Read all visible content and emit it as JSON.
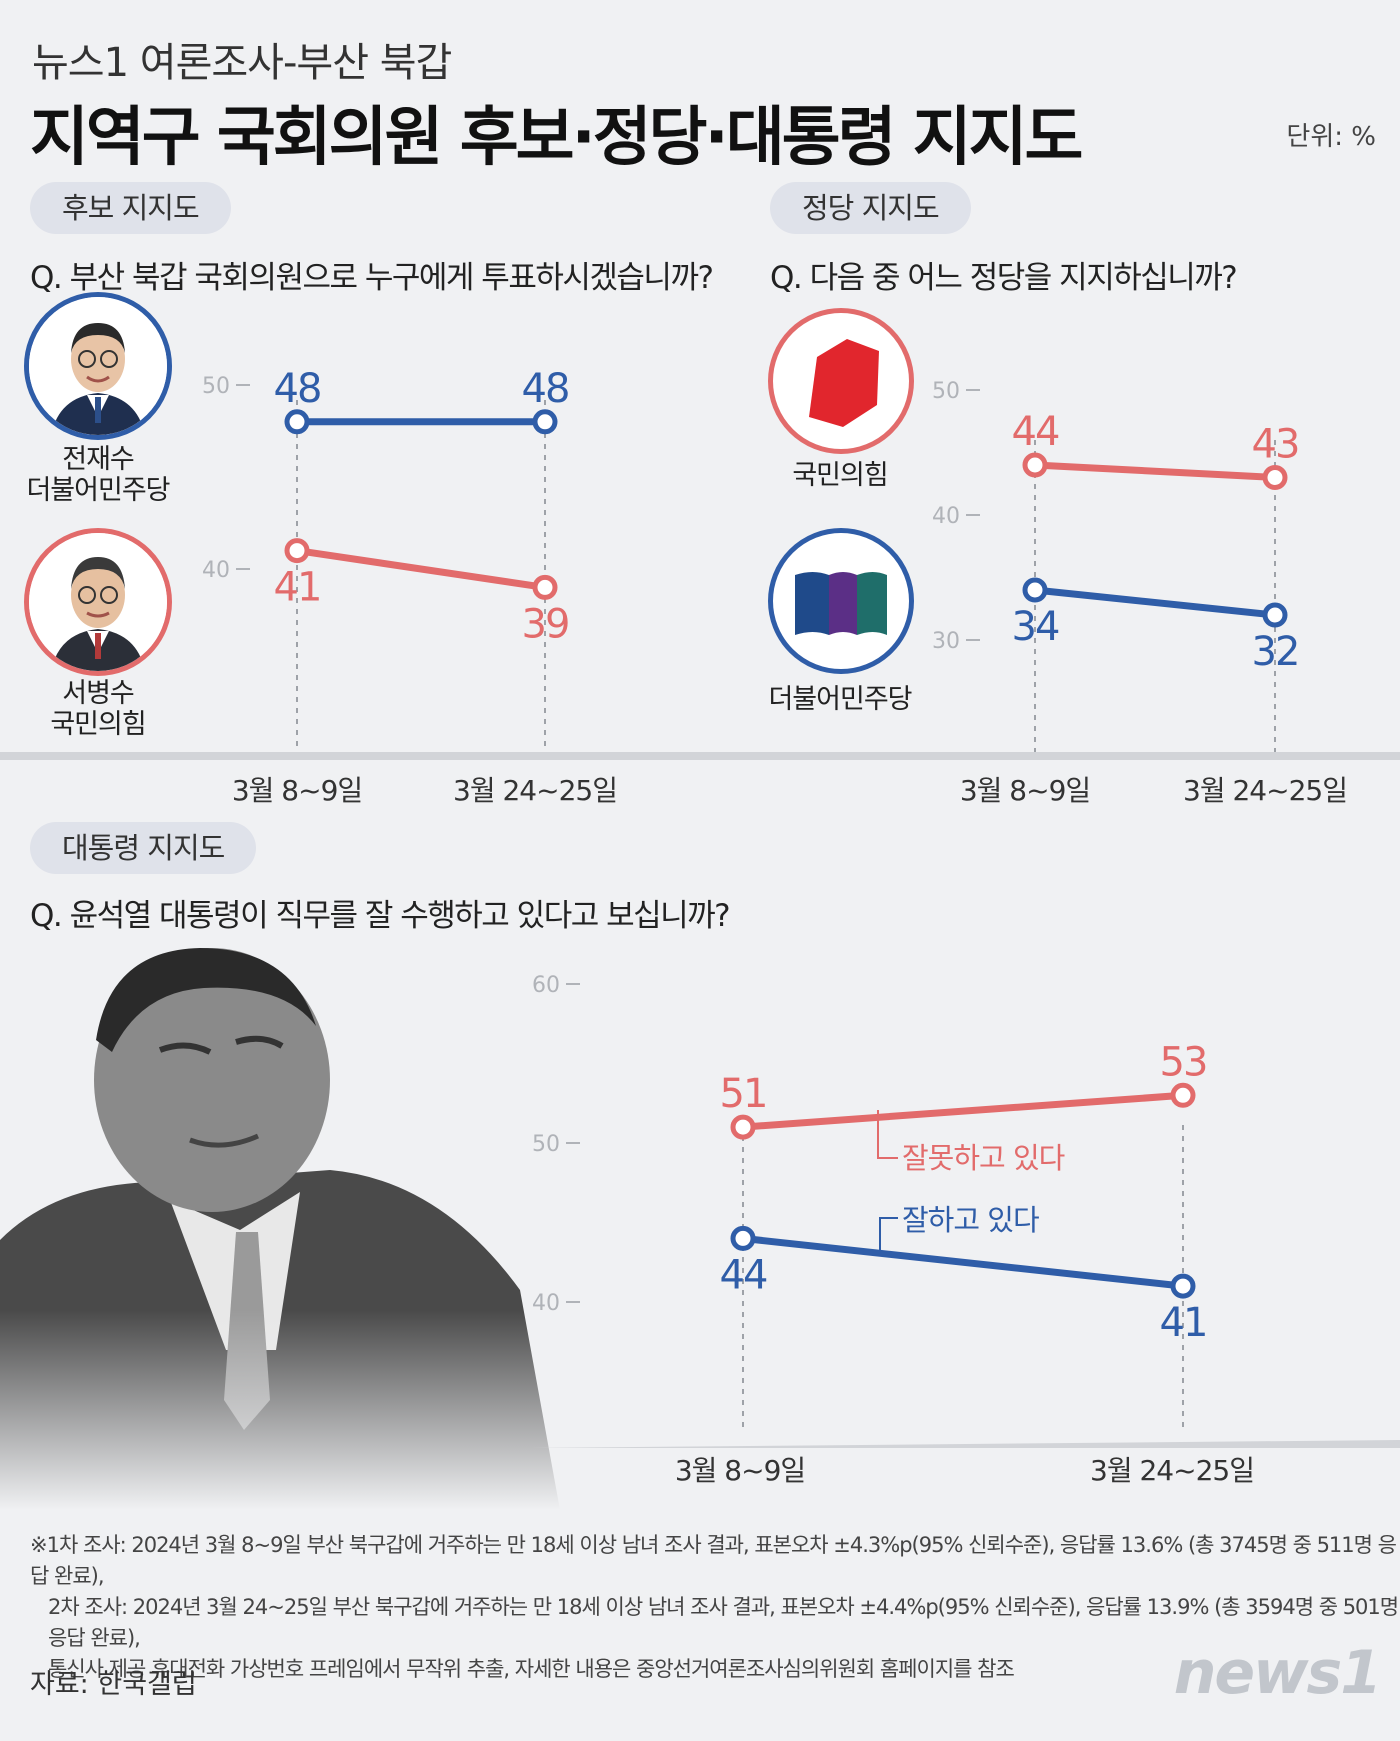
{
  "header": {
    "subtitle": "뉴스1 여론조사-부산 북갑",
    "title": "지역구 국회의원 후보·정당·대통령 지지도",
    "unit": "단위: %"
  },
  "colors": {
    "blue": "#2f5da8",
    "red": "#e26b6b",
    "party_red": "#e1262d"
  },
  "candidates": {
    "pill": "후보 지지도",
    "question": "Q. 부산 북갑 국회의원으로 누구에게 투표하시겠습니까?",
    "people": [
      {
        "name": "전재수",
        "party": "더불어민주당"
      },
      {
        "name": "서병수",
        "party": "국민의힘"
      }
    ]
  },
  "parties": {
    "pill": "정당 지지도",
    "question": "Q. 다음 중 어느 정당을 지지하십니까?",
    "labels": [
      "국민의힘",
      "더불어민주당"
    ]
  },
  "president": {
    "pill": "대통령 지지도",
    "question": "Q. 윤석열 대통령이 직무를 잘 수행하고 있다고 보십니까?"
  },
  "chart_data": [
    {
      "type": "line",
      "x": [
        "3월 8~9일",
        "3월 24~25일"
      ],
      "yticks": [
        50,
        40
      ],
      "ylim": [
        35,
        52
      ],
      "series": [
        {
          "name": "전재수",
          "values": [
            48,
            48
          ],
          "color": "#2f5da8"
        },
        {
          "name": "서병수",
          "values": [
            41,
            39
          ],
          "color": "#e26b6b"
        }
      ]
    },
    {
      "type": "line",
      "x": [
        "3월 8~9일",
        "3월 24~25일"
      ],
      "yticks": [
        50,
        40,
        30
      ],
      "ylim": [
        25,
        52
      ],
      "series": [
        {
          "name": "국민의힘",
          "values": [
            44,
            43
          ],
          "color": "#e26b6b"
        },
        {
          "name": "더불어민주당",
          "values": [
            34,
            32
          ],
          "color": "#2f5da8"
        }
      ]
    },
    {
      "type": "line",
      "x": [
        "3월 8~9일",
        "3월 24~25일"
      ],
      "yticks": [
        60,
        50,
        40
      ],
      "ylim": [
        33,
        62
      ],
      "series": [
        {
          "name": "잘못하고 있다",
          "values": [
            51,
            53
          ],
          "color": "#e26b6b"
        },
        {
          "name": "잘하고 있다",
          "values": [
            44,
            41
          ],
          "color": "#2f5da8"
        }
      ]
    }
  ],
  "footer": {
    "notes": [
      "※1차 조사: 2024년 3월 8~9일 부산 북구갑에 거주하는 만 18세 이상 남녀 조사 결과, 표본오차 ±4.3%p(95% 신뢰수준), 응답률 13.6% (총 3745명 중 511명 응답 완료),",
      "2차 조사: 2024년 3월 24~25일 부산 북구갑에 거주하는 만 18세 이상 남녀 조사 결과, 표본오차 ±4.4%p(95% 신뢰수준), 응답률 13.9% (총 3594명 중 501명 응답 완료),",
      "통신사 제공 휴대전화 가상번호 프레임에서 무작위 추출, 자세한 내용은 중앙선거여론조사심의위원회 홈페이지를 참조"
    ],
    "source": "자료: 한국갤럽",
    "logo": "news1"
  }
}
